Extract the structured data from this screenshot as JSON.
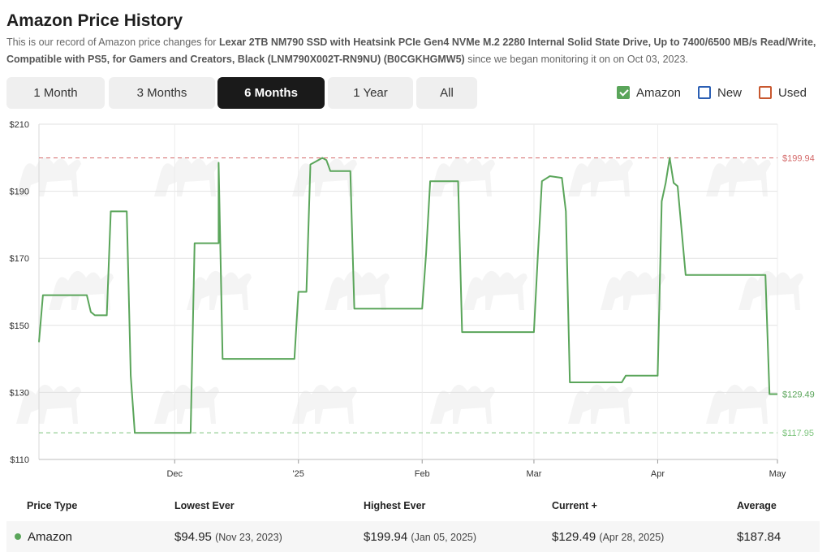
{
  "header": {
    "title": "Amazon Price History",
    "desc_prefix": "This is our record of Amazon price changes for ",
    "product_name": "Lexar 2TB NM790 SSD with Heatsink PCIe Gen4 NVMe M.2 2280 Internal Solid State Drive, Up to 7400/6500 MB/s Read/Write, Compatible with PS5, for Gamers and Creators, Black (LNM790X002T-RN9NU) (B0CGKHGMW5)",
    "desc_suffix": " since we began monitoring it on on Oct 03, 2023."
  },
  "ranges": [
    {
      "label": "1 Month",
      "active": false
    },
    {
      "label": "3 Months",
      "active": false
    },
    {
      "label": "6 Months",
      "active": true
    },
    {
      "label": "1 Year",
      "active": false
    },
    {
      "label": "All",
      "active": false
    }
  ],
  "legend": [
    {
      "label": "Amazon",
      "checked": true,
      "color": "#5aa55a"
    },
    {
      "label": "New",
      "checked": false,
      "color": "#2b5fb4"
    },
    {
      "label": "Used",
      "checked": false,
      "color": "#c8582f"
    }
  ],
  "chart_data": {
    "type": "line",
    "step": true,
    "y_unit": "$",
    "ylim": [
      110,
      210
    ],
    "yticks": [
      "$210",
      "$190",
      "$170",
      "$150",
      "$130",
      "$110"
    ],
    "ytick_values": [
      210,
      190,
      170,
      150,
      130,
      110
    ],
    "xlim": [
      "2024-10-28",
      "2025-05-01"
    ],
    "xticks": [
      {
        "label": "Dec",
        "date": "2024-12-01"
      },
      {
        "label": "'25",
        "date": "2025-01-01"
      },
      {
        "label": "Feb",
        "date": "2025-02-01"
      },
      {
        "label": "Mar",
        "date": "2025-03-01"
      },
      {
        "label": "Apr",
        "date": "2025-04-01"
      },
      {
        "label": "May",
        "date": "2025-05-01"
      }
    ],
    "grid": true,
    "reference_lines": [
      {
        "value": 199.94,
        "label": "$199.94",
        "color": "#d46a6a"
      },
      {
        "value": 117.95,
        "label": "$117.95",
        "color": "#7cc47c"
      }
    ],
    "end_label": {
      "value": 129.49,
      "label": "$129.49",
      "color": "#5aa55a"
    },
    "series": [
      {
        "name": "Amazon",
        "color": "#5aa55a",
        "points": [
          [
            "2024-10-28",
            145
          ],
          [
            "2024-10-29",
            159
          ],
          [
            "2024-11-09",
            159
          ],
          [
            "2024-11-10",
            154
          ],
          [
            "2024-11-11",
            153
          ],
          [
            "2024-11-14",
            153
          ],
          [
            "2024-11-15",
            184
          ],
          [
            "2024-11-19",
            184
          ],
          [
            "2024-11-20",
            135
          ],
          [
            "2024-11-21",
            117.95
          ],
          [
            "2024-12-05",
            117.95
          ],
          [
            "2024-12-06",
            174.5
          ],
          [
            "2024-12-12",
            174.5
          ],
          [
            "2024-12-12",
            198.5
          ],
          [
            "2024-12-13",
            140
          ],
          [
            "2024-12-31",
            140
          ],
          [
            "2025-01-01",
            160
          ],
          [
            "2025-01-03",
            160
          ],
          [
            "2025-01-04",
            198
          ],
          [
            "2025-01-06",
            199.3
          ],
          [
            "2025-01-07",
            199.94
          ],
          [
            "2025-01-08",
            199.3
          ],
          [
            "2025-01-09",
            196
          ],
          [
            "2025-01-14",
            196
          ],
          [
            "2025-01-15",
            155
          ],
          [
            "2025-02-01",
            155
          ],
          [
            "2025-02-02",
            171.5
          ],
          [
            "2025-02-03",
            193
          ],
          [
            "2025-02-10",
            193
          ],
          [
            "2025-02-11",
            148
          ],
          [
            "2025-03-01",
            148
          ],
          [
            "2025-03-02",
            171.5
          ],
          [
            "2025-03-03",
            193
          ],
          [
            "2025-03-05",
            194.5
          ],
          [
            "2025-03-08",
            194
          ],
          [
            "2025-03-09",
            184
          ],
          [
            "2025-03-10",
            133
          ],
          [
            "2025-03-23",
            133
          ],
          [
            "2025-03-24",
            135
          ],
          [
            "2025-04-01",
            135
          ],
          [
            "2025-04-02",
            187
          ],
          [
            "2025-04-03",
            192.5
          ],
          [
            "2025-04-04",
            199.94
          ],
          [
            "2025-04-05",
            192.5
          ],
          [
            "2025-04-06",
            191.5
          ],
          [
            "2025-04-08",
            165
          ],
          [
            "2025-04-28",
            165
          ],
          [
            "2025-04-29",
            129.49
          ],
          [
            "2025-05-01",
            129.49
          ]
        ]
      }
    ]
  },
  "table": {
    "headers": {
      "price_type": "Price Type",
      "lowest": "Lowest Ever",
      "highest": "Highest Ever",
      "current": "Current +",
      "average": "Average"
    },
    "rows": [
      {
        "price_type": "Amazon",
        "lowest": "$94.95",
        "lowest_date": "(Nov 23, 2023)",
        "highest": "$199.94",
        "highest_date": "(Jan 05, 2025)",
        "current": "$129.49",
        "current_date": "(Apr 28, 2025)",
        "average": "$187.84"
      }
    ]
  }
}
